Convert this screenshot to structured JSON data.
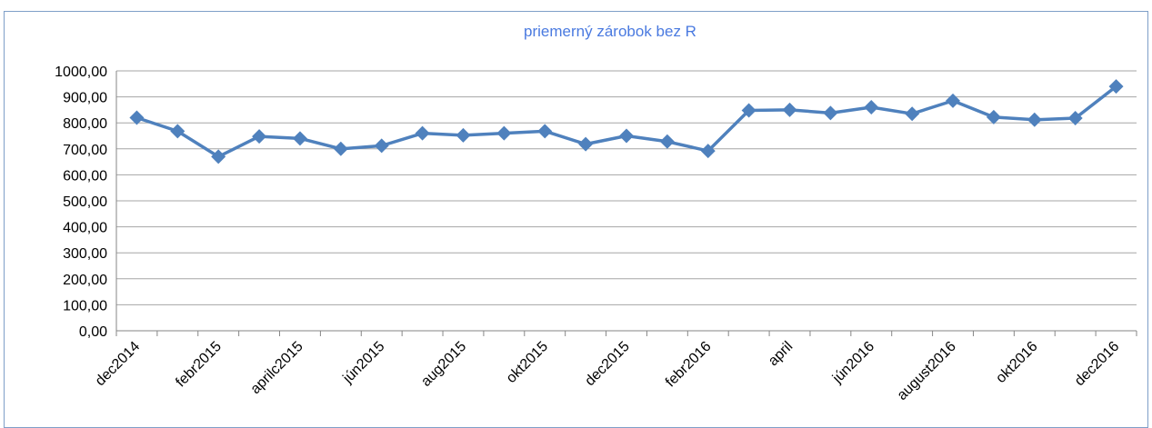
{
  "chart_data": {
    "type": "line",
    "title": "priemerný zárobok bez R",
    "categories": [
      "dec2014",
      null,
      "febr2015",
      null,
      "aprilc2015",
      null,
      "jún2015",
      null,
      "aug2015",
      null,
      "okt2015",
      null,
      "dec2015",
      null,
      "febr2016",
      null,
      "april",
      null,
      "jún2016",
      null,
      "august2016",
      null,
      "okt2016",
      null,
      "dec2016"
    ],
    "series": [
      {
        "name": "priemerný zárobok bez R",
        "color": "#4f81bd",
        "values": [
          820,
          768,
          670,
          748,
          740,
          700,
          712,
          760,
          752,
          760,
          768,
          718,
          750,
          728,
          692,
          848,
          850,
          838,
          860,
          835,
          885,
          822,
          812,
          818,
          940
        ]
      }
    ],
    "ylim": [
      0,
      1000
    ],
    "yticks": [
      {
        "value": 0,
        "label": "0,00"
      },
      {
        "value": 100,
        "label": "100,00"
      },
      {
        "value": 200,
        "label": "200,00"
      },
      {
        "value": 300,
        "label": "300,00"
      },
      {
        "value": 400,
        "label": "400,00"
      },
      {
        "value": 500,
        "label": "500,00"
      },
      {
        "value": 600,
        "label": "600,00"
      },
      {
        "value": 700,
        "label": "700,00"
      },
      {
        "value": 800,
        "label": "800,00"
      },
      {
        "value": 900,
        "label": "900,00"
      },
      {
        "value": 1000,
        "label": "1000,00"
      }
    ],
    "grid": true
  }
}
